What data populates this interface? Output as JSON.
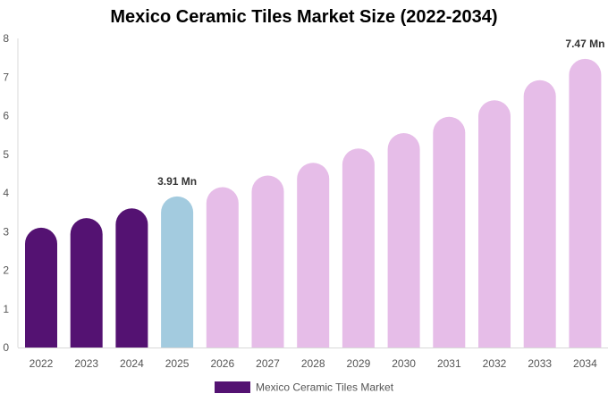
{
  "chart_data": {
    "type": "bar",
    "title": "Mexico Ceramic Tiles Market Size (2022-2034)",
    "categories": [
      "2022",
      "2023",
      "2024",
      "2025",
      "2026",
      "2027",
      "2028",
      "2029",
      "2030",
      "2031",
      "2032",
      "2033",
      "2034"
    ],
    "series": [
      {
        "name": "Mexico Ceramic Tiles Market",
        "values": [
          3.1,
          3.35,
          3.6,
          3.91,
          4.15,
          4.45,
          4.78,
          5.15,
          5.55,
          5.97,
          6.4,
          6.92,
          7.47
        ]
      }
    ],
    "bar_colors": [
      "#541272",
      "#541272",
      "#541272",
      "#a3cbdf",
      "#e6bde8",
      "#e6bde8",
      "#e6bde8",
      "#e6bde8",
      "#e6bde8",
      "#e6bde8",
      "#e6bde8",
      "#e6bde8",
      "#e6bde8"
    ],
    "data_labels": [
      {
        "category": "2025",
        "text": "3.91 Mn"
      },
      {
        "category": "2034",
        "text": "7.47 Mn"
      }
    ],
    "ylim": [
      0,
      8
    ],
    "yticks": [
      0,
      1,
      2,
      3,
      4,
      5,
      6,
      7,
      8
    ],
    "grid": false,
    "legend_position": "bottom-center",
    "legend_color": "#541272",
    "xlabel": "",
    "ylabel": ""
  }
}
